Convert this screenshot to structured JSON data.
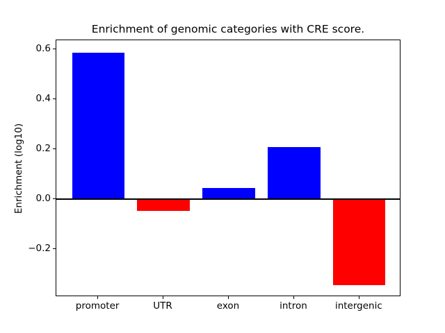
{
  "chart_data": {
    "type": "bar",
    "title": "Enrichment of genomic categories with CRE score.",
    "xlabel": "",
    "ylabel": "Enrichment (log10)",
    "categories": [
      "promoter",
      "UTR",
      "exon",
      "intron",
      "intergenic"
    ],
    "values": [
      0.585,
      -0.048,
      0.044,
      0.208,
      -0.346
    ],
    "bar_colors": [
      "#0000ff",
      "#ff0000",
      "#0000ff",
      "#0000ff",
      "#ff0000"
    ],
    "positive_color": "#0000ff",
    "negative_color": "#ff0000",
    "bar_width_fraction": 0.8,
    "y_ticks": [
      0.6,
      0.4,
      0.2,
      0.0,
      -0.2
    ],
    "y_tick_labels": [
      "0.6",
      "0.4",
      "0.2",
      "0.0",
      "−0.2"
    ],
    "ylim": [
      -0.392,
      0.636
    ],
    "xlim": [
      -0.64,
      4.64
    ],
    "zero_line": true,
    "grid": false,
    "legend": "none",
    "axes_edge_color": "#000000",
    "background_color": "#ffffff"
  }
}
